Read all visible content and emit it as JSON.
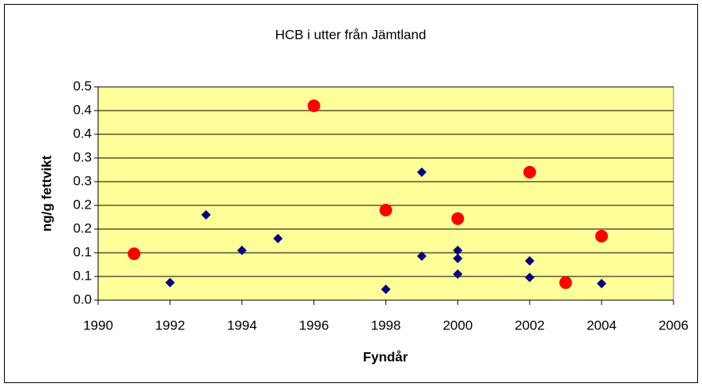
{
  "chart_data": {
    "type": "scatter",
    "title": "HCB i utter från Jämtland",
    "x_label": "Fyndår",
    "y_label": "ng/g fettvikt",
    "xlim": [
      1990,
      2006
    ],
    "xticks": [
      1990,
      1992,
      1994,
      1996,
      1998,
      2000,
      2002,
      2004,
      2006
    ],
    "ylim": [
      0,
      0.45
    ],
    "yticks": [
      {
        "value": 0,
        "label": "0.0"
      },
      {
        "value": 0.05,
        "label": "0.1"
      },
      0.1,
      {
        "value": 0.15,
        "label": "0.2"
      },
      0.2,
      {
        "value": 0.25,
        "label": "0.3"
      },
      0.3,
      {
        "value": 0.35,
        "label": "0.4"
      },
      0.4,
      {
        "value": 0.45,
        "label": "0.5"
      }
    ],
    "grid": true,
    "plot_background": "#ffff99",
    "series": [
      {
        "color": "#000080",
        "marker": "diamond",
        "x": [
          1992,
          1993,
          1994,
          1995,
          1998,
          1999,
          1999,
          2000,
          2000,
          2000,
          2002,
          2002,
          2004
        ],
        "values": [
          0.037,
          0.18,
          0.105,
          0.13,
          0.023,
          0.27,
          0.093,
          0.105,
          0.088,
          0.055,
          0.083,
          0.048,
          0.035
        ]
      },
      {
        "color": "#ff0000",
        "marker": "circle",
        "x": [
          1991,
          1996,
          1998,
          2000,
          2002,
          2003,
          2004
        ],
        "values": [
          0.098,
          0.41,
          0.19,
          0.172,
          0.27,
          0.037,
          0.135
        ]
      }
    ]
  }
}
